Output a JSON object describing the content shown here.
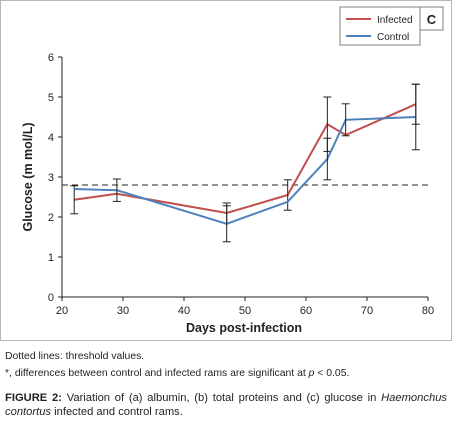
{
  "chart_data": {
    "type": "line",
    "panel_label": "C",
    "xlabel": "Days post-infection",
    "ylabel": "Glucose (m mol/L)",
    "xlim": [
      20,
      80
    ],
    "ylim": [
      0,
      6
    ],
    "x_ticks": [
      "20",
      "30",
      "40",
      "50",
      "60",
      "70",
      "80"
    ],
    "y_ticks": [
      "0",
      "1",
      "2",
      "3",
      "4",
      "5",
      "6"
    ],
    "threshold": 2.8,
    "legend_position": "top-right",
    "series": [
      {
        "name": "Infected",
        "color": "#c0504d",
        "x": [
          22,
          29,
          47,
          57,
          63.5,
          66.5,
          78
        ],
        "y": [
          2.43,
          2.58,
          2.1,
          2.55,
          4.32,
          4.05,
          4.82
        ],
        "error": [
          0.35,
          0,
          0.25,
          0.38,
          0.68,
          0,
          0.5
        ]
      },
      {
        "name": "Control",
        "color": "#4f81bd",
        "x": [
          22,
          29,
          47,
          57,
          63.5,
          66.5,
          78
        ],
        "y": [
          2.7,
          2.67,
          1.83,
          2.38,
          3.45,
          4.43,
          4.5
        ],
        "error": [
          0,
          0.28,
          0.45,
          0,
          0.52,
          0.4,
          0.82
        ]
      }
    ]
  },
  "notes": {
    "line1": "Dotted lines: threshold values.",
    "line2_prefix": "*, differences between control and infected rams are significant at ",
    "line2_p": "p",
    "line2_suffix": " < 0.05."
  },
  "caption": {
    "label": "FIGURE 2:",
    "text_before": " Variation of (a) albumin, (b) total proteins and (c) glucose in ",
    "species": "Haemonchus contortus",
    "text_after": " infected and control rams."
  }
}
